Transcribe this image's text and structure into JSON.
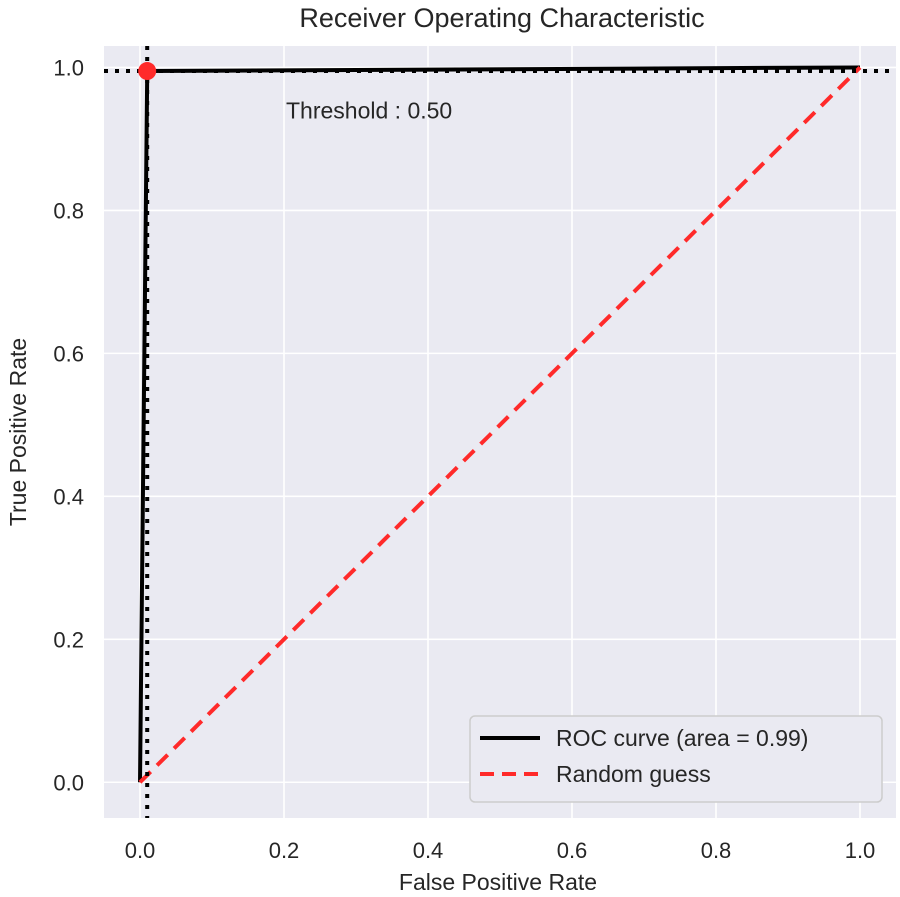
{
  "chart_data": {
    "type": "line",
    "title": "Receiver Operating Characteristic",
    "xlabel": "False Positive Rate",
    "ylabel": "True Positive Rate",
    "xlim": [
      -0.05,
      1.05
    ],
    "ylim": [
      -0.05,
      1.03
    ],
    "xticks": [
      "0.0",
      "0.2",
      "0.4",
      "0.6",
      "0.8",
      "1.0"
    ],
    "yticks": [
      "0.0",
      "0.2",
      "0.4",
      "0.6",
      "0.8",
      "1.0"
    ],
    "grid": true,
    "legend_position": "bottom-right",
    "series": [
      {
        "name": "ROC curve (area = 0.99)",
        "style": "solid",
        "color": "#000000",
        "x": [
          0.0,
          0.01,
          0.01,
          1.0
        ],
        "y": [
          0.0,
          0.99,
          0.995,
          1.0
        ]
      },
      {
        "name": "Random guess",
        "style": "dashed",
        "color": "#ff2a2a",
        "x": [
          0.0,
          1.0
        ],
        "y": [
          0.0,
          1.0
        ]
      }
    ],
    "reference_lines": {
      "vertical_x": 0.01,
      "horizontal_y": 0.995,
      "style": "dotted",
      "color": "#000000"
    },
    "marker": {
      "x": 0.01,
      "y": 0.995,
      "color": "#ff2a2a"
    },
    "annotation": {
      "text": "Threshold : 0.50",
      "x": 0.2,
      "y": 0.94
    }
  },
  "colors": {
    "plot_background": "#eaeaf2",
    "grid": "#ffffff",
    "text": "#262626"
  }
}
